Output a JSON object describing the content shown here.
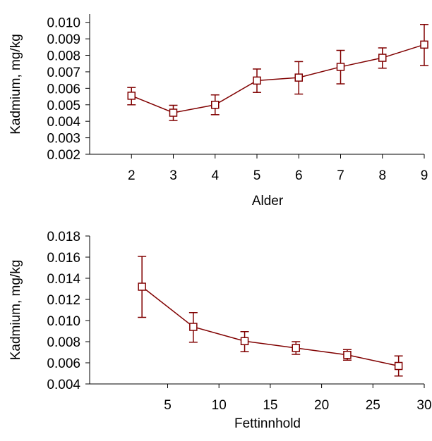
{
  "chart_data": [
    {
      "type": "line",
      "xlabel": "Alder",
      "ylabel": "Kadmium, mg/kg",
      "x": [
        2,
        3,
        4,
        5,
        6,
        7,
        8,
        9
      ],
      "x_ticks": [
        "2",
        "3",
        "4",
        "5",
        "6",
        "7",
        "8",
        "9"
      ],
      "xlim": [
        1.0,
        9.0
      ],
      "y_ticks": [
        "0.002",
        "0.003",
        "0.004",
        "0.005",
        "0.006",
        "0.007",
        "0.008",
        "0.009",
        "0.010"
      ],
      "ylim": [
        0.002,
        0.0105
      ],
      "series": [
        {
          "values": [
            0.00555,
            0.00452,
            0.005,
            0.00647,
            0.00665,
            0.0073,
            0.00785,
            0.00865
          ],
          "error_low": [
            0.005,
            0.00405,
            0.0044,
            0.00575,
            0.00565,
            0.00627,
            0.00722,
            0.00738
          ],
          "error_high": [
            0.00605,
            0.00497,
            0.0056,
            0.00717,
            0.00762,
            0.0083,
            0.00845,
            0.00987
          ]
        }
      ],
      "marker": "square",
      "grid": false,
      "color": "#800000"
    },
    {
      "type": "line",
      "xlabel": "Fettinnhold",
      "ylabel": "Kadmium, mg/kg",
      "x": [
        2.5,
        7.5,
        12.5,
        17.5,
        22.5,
        27.5
      ],
      "x_ticks": [
        "5",
        "10",
        "15",
        "20",
        "25",
        "30"
      ],
      "x_tick_values": [
        5,
        10,
        15,
        20,
        25,
        30
      ],
      "xlim": [
        -2.6,
        30.0
      ],
      "y_ticks": [
        "0.004",
        "0.006",
        "0.008",
        "0.010",
        "0.012",
        "0.014",
        "0.016",
        "0.018"
      ],
      "y_tick_values": [
        0.004,
        0.006,
        0.008,
        0.01,
        0.012,
        0.014,
        0.016,
        0.018
      ],
      "ylim": [
        0.004,
        0.018
      ],
      "series": [
        {
          "values": [
            0.0132,
            0.0094,
            0.00805,
            0.0074,
            0.00675,
            0.0057
          ],
          "error_low": [
            0.0103,
            0.00795,
            0.00705,
            0.0068,
            0.00625,
            0.00475
          ],
          "error_high": [
            0.01607,
            0.01075,
            0.00895,
            0.008,
            0.00725,
            0.00665
          ]
        }
      ],
      "marker": "square",
      "grid": false,
      "color": "#800000"
    }
  ]
}
